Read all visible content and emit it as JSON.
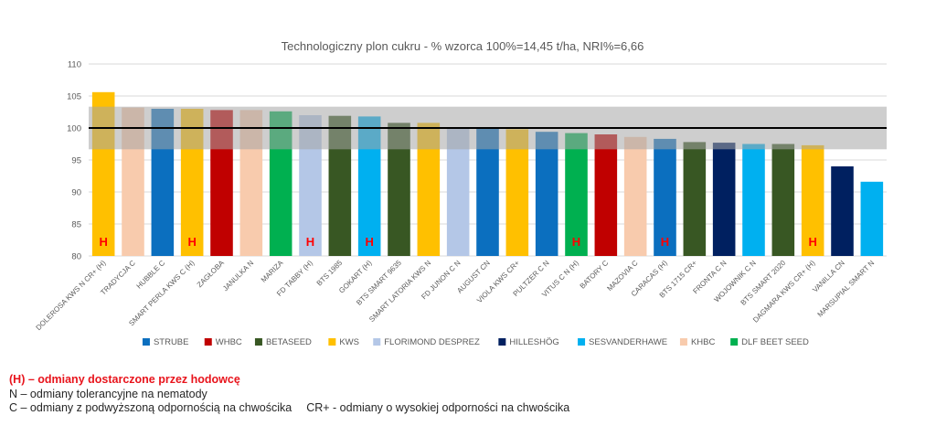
{
  "chart_data": {
    "type": "bar",
    "title": "Technologiczny plon cukru - % wzorca 100%=14,45 t/ha, NRI%=6,66",
    "xlabel": "",
    "ylabel": "",
    "ylim": [
      80,
      110
    ],
    "yticks": [
      "80",
      "85",
      "90",
      "95",
      "100",
      "105",
      "110"
    ],
    "grid": true,
    "reference_line": 100,
    "nri_band": [
      96.67,
      103.33
    ],
    "categories": [
      "DOLEROSA KWS N CR+ (H)",
      "TRADYCJA C",
      "HUBBLE C",
      "SMART PERLA KWS C (H)",
      "ZAGŁOBA",
      "JANULKA N",
      "MARIZA",
      "FD TABBY (H)",
      "BTS 1985",
      "GOKART (H)",
      "BTS SMART 9635",
      "SMART LATORIA KWS N",
      "FD JUNON C N",
      "AUGUST CN",
      "VIOLA KWS CR+",
      "PULTZER C N",
      "VITUS C N (H)",
      "BATORY C",
      "MAZOVIA C",
      "CARACAS (H)",
      "BTS 1715 CR+",
      "FRONTA C N",
      "WOJOWNIK C N",
      "BTS SMART 2020",
      "DAGMARA KWS CR+ (H)",
      "VANILLA CN",
      "MARSUPIAL SMART N"
    ],
    "values": [
      105.6,
      103.2,
      103.0,
      103.0,
      102.8,
      102.8,
      102.6,
      102.0,
      101.9,
      101.8,
      100.8,
      100.8,
      100.1,
      99.9,
      99.8,
      99.4,
      99.2,
      99.0,
      98.6,
      98.3,
      97.8,
      97.7,
      97.5,
      97.5,
      97.3,
      94.0,
      91.6
    ],
    "breeders": [
      "KWS",
      "KHBC",
      "STRUBE",
      "KWS",
      "WHBC",
      "KHBC",
      "DLF BEET SEED",
      "FLORIMOND DESPREZ",
      "BETASEED",
      "SESVANDERHAWE",
      "BETASEED",
      "KWS",
      "FLORIMOND DESPREZ",
      "STRUBE",
      "KWS",
      "STRUBE",
      "DLF BEET SEED",
      "WHBC",
      "KHBC",
      "STRUBE",
      "BETASEED",
      "HILLESHÖG",
      "SESVANDERHAWE",
      "BETASEED",
      "KWS",
      "HILLESHÖG",
      "SESVANDERHAWE"
    ],
    "h_flags": [
      true,
      false,
      false,
      true,
      false,
      false,
      false,
      true,
      false,
      true,
      false,
      false,
      false,
      false,
      false,
      false,
      true,
      false,
      false,
      true,
      false,
      false,
      false,
      false,
      true,
      false,
      false
    ],
    "h_label": "H",
    "legend": [
      {
        "name": "STRUBE",
        "color": "#0b6fbf"
      },
      {
        "name": "WHBC",
        "color": "#c00000"
      },
      {
        "name": "BETASEED",
        "color": "#385723"
      },
      {
        "name": "KWS",
        "color": "#ffc000"
      },
      {
        "name": "FLORIMOND DESPREZ",
        "color": "#b4c7e7"
      },
      {
        "name": "HILLESHÖG",
        "color": "#002060"
      },
      {
        "name": "SESVANDERHAWE",
        "color": "#00b0f0"
      },
      {
        "name": "KHBC",
        "color": "#f8cbad"
      },
      {
        "name": "DLF BEET SEED",
        "color": "#00b050"
      }
    ],
    "legend_position": "bottom"
  },
  "notes": [
    "(H) – odmiany dostarczone przez hodowcę",
    "N – odmiany tolerancyjne na nematody",
    "C – odmiany z podwyższoną odpornością na chwościka",
    "CR+ - odmiany o wysokiej odporności na chwościka"
  ]
}
